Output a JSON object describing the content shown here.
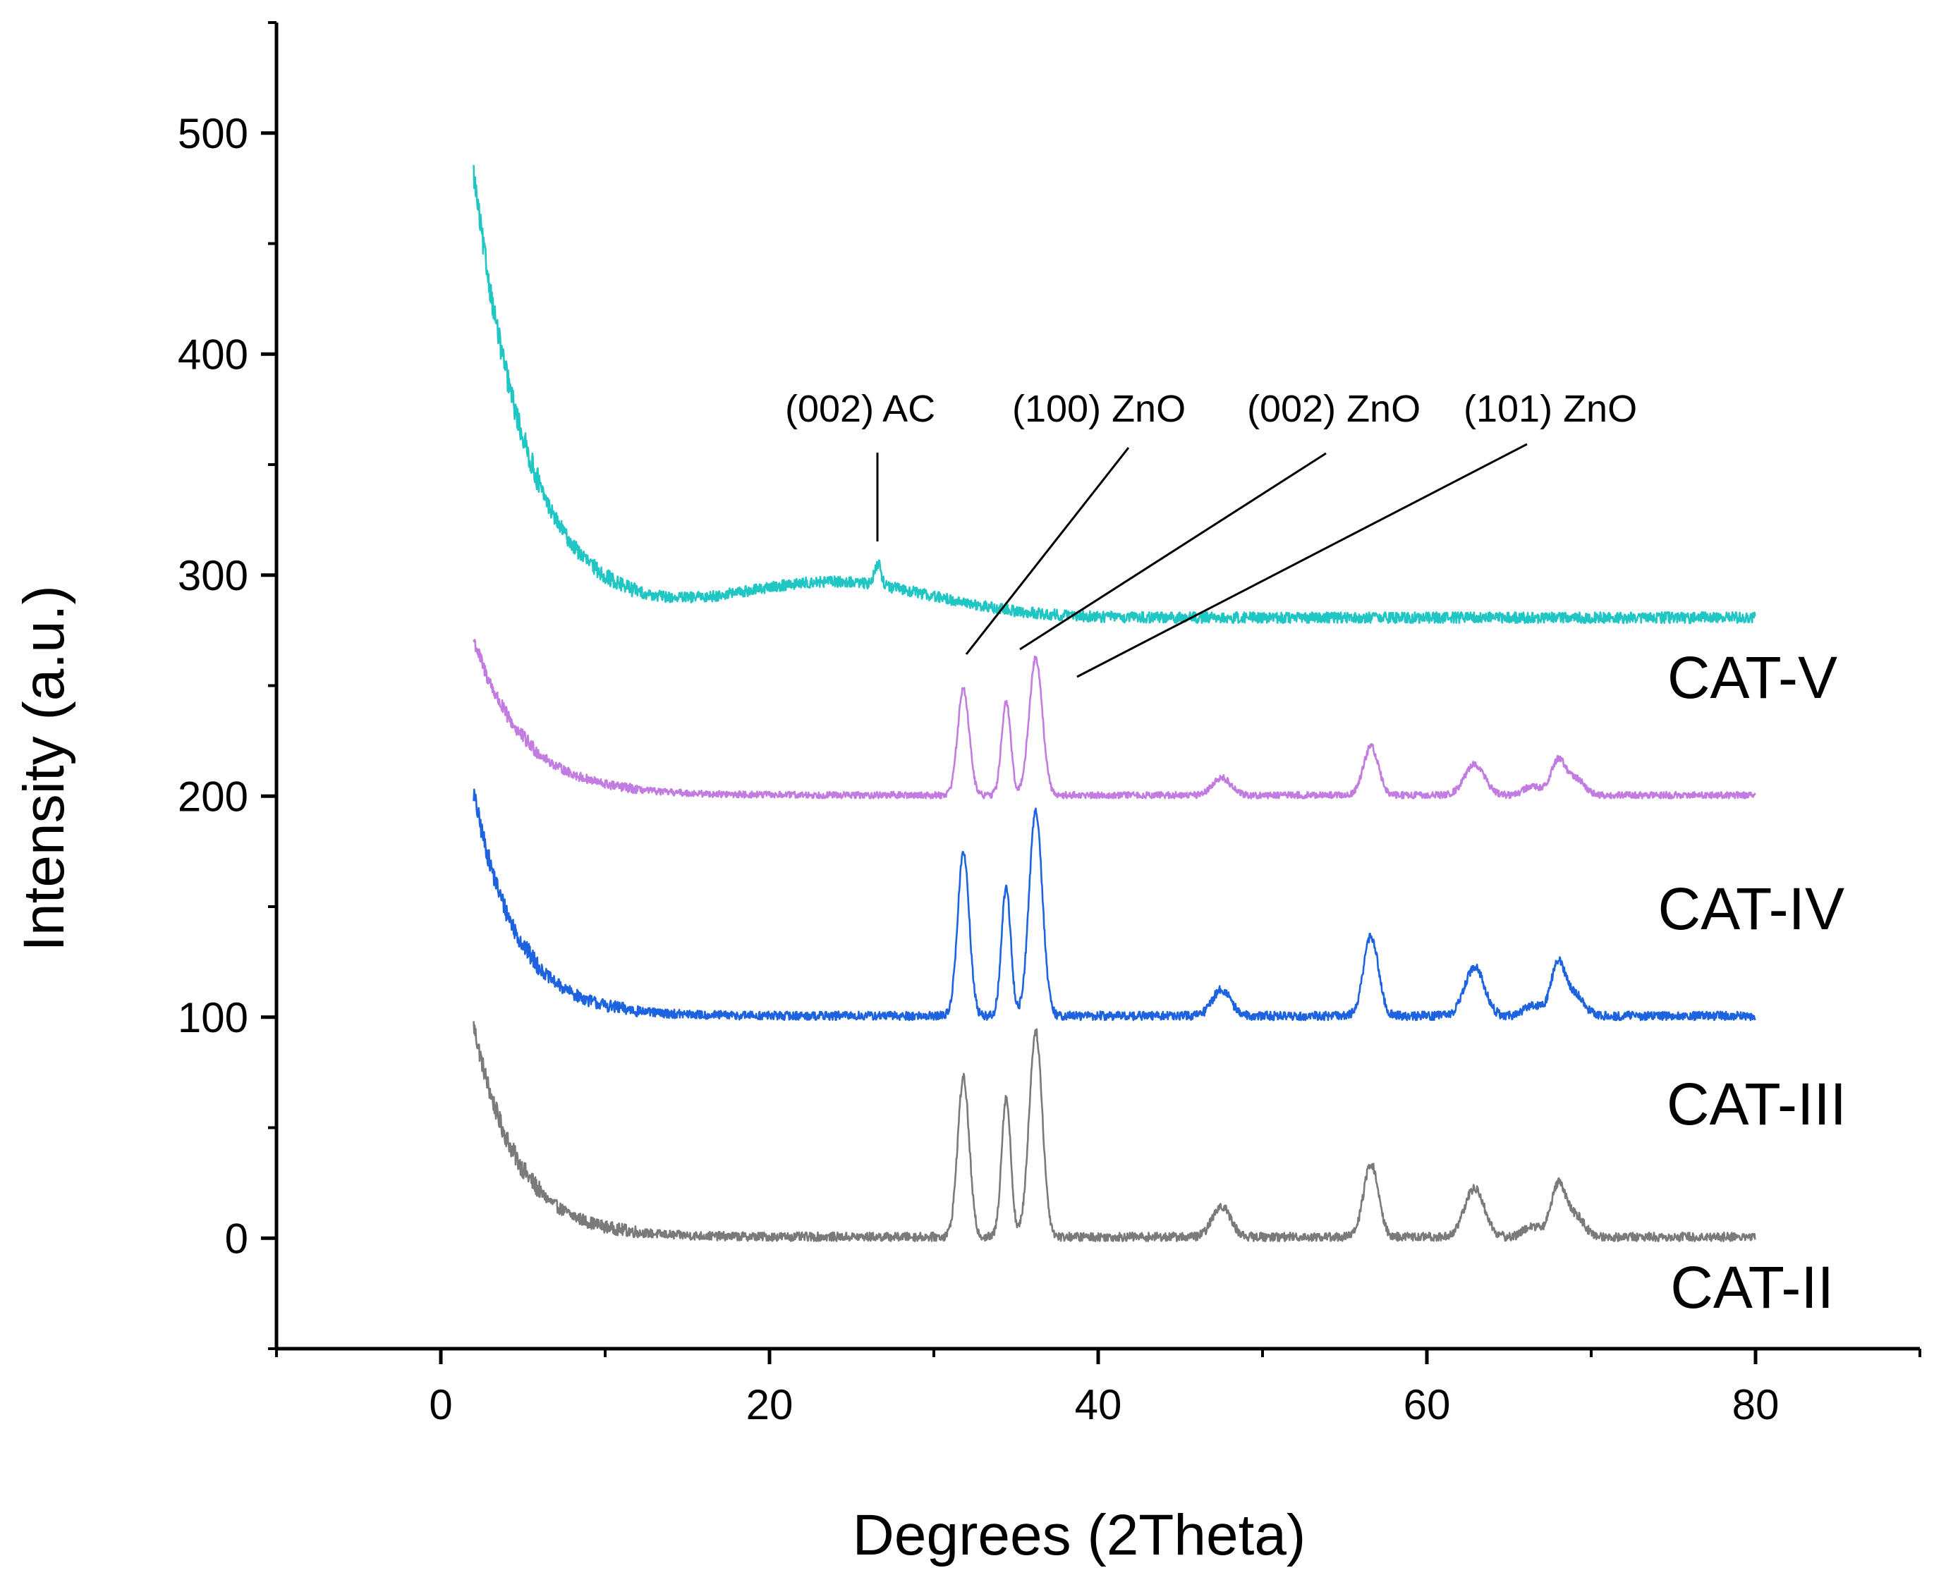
{
  "chart_data": {
    "type": "line",
    "title": "",
    "xlabel": "Degrees (2Theta)",
    "ylabel": "Intensity (a.u.)",
    "xlim": [
      -10,
      90
    ],
    "ylim": [
      -50,
      550
    ],
    "xticks": [
      0,
      20,
      40,
      60,
      80
    ],
    "yticks": [
      0,
      100,
      200,
      300,
      400,
      500
    ],
    "x_tick_labels": [
      "0",
      "20",
      "40",
      "60",
      "80"
    ],
    "y_tick_labels": [
      "0",
      "100",
      "200",
      "300",
      "400",
      "500"
    ],
    "grid": false,
    "series": [
      {
        "name": "CAT-II",
        "color": "#7a7a7a",
        "offset": 0,
        "profile": {
          "start": 2,
          "end": 80,
          "decay": {
            "amp": 95,
            "tau": 2.6
          },
          "noise": 4,
          "peaks": [
            [
              31.8,
              72,
              0.35
            ],
            [
              34.4,
              63,
              0.28
            ],
            [
              36.2,
              93,
              0.4
            ],
            [
              47.5,
              14,
              0.55
            ],
            [
              56.6,
              33,
              0.45
            ],
            [
              62.9,
              22,
              0.6
            ],
            [
              66.4,
              5,
              0.5
            ],
            [
              68.0,
              24,
              0.45
            ],
            [
              69.1,
              9,
              0.5
            ]
          ]
        }
      },
      {
        "name": "CAT-III",
        "color": "#1d63df",
        "offset": 100,
        "profile": {
          "start": 2,
          "end": 80,
          "decay": {
            "amp": 100,
            "tau": 2.6
          },
          "noise": 4,
          "peaks": [
            [
              31.8,
              74,
              0.35
            ],
            [
              34.4,
              58,
              0.28
            ],
            [
              36.2,
              93,
              0.4
            ],
            [
              47.5,
              12,
              0.55
            ],
            [
              56.6,
              36,
              0.45
            ],
            [
              62.9,
              22,
              0.6
            ],
            [
              66.4,
              5,
              0.5
            ],
            [
              68.0,
              24,
              0.45
            ],
            [
              69.1,
              9,
              0.5
            ]
          ]
        }
      },
      {
        "name": "CAT-IV",
        "color": "#c27be0",
        "offset": 200,
        "profile": {
          "start": 2,
          "end": 80,
          "decay": {
            "amp": 70,
            "tau": 3.0
          },
          "noise": 3,
          "peaks": [
            [
              31.8,
              48,
              0.35
            ],
            [
              34.4,
              42,
              0.28
            ],
            [
              36.2,
              62,
              0.4
            ],
            [
              47.5,
              8,
              0.55
            ],
            [
              56.6,
              22,
              0.45
            ],
            [
              62.9,
              14,
              0.6
            ],
            [
              66.4,
              4,
              0.5
            ],
            [
              68.0,
              16,
              0.45
            ],
            [
              69.1,
              7,
              0.5
            ]
          ]
        }
      },
      {
        "name": "CAT-V",
        "color": "#1fc6c4",
        "offset": 280,
        "profile": {
          "start": 2,
          "end": 80,
          "decay": {
            "amp": 200,
            "tau": 3.3
          },
          "noise": 5,
          "broad": [
            24.0,
            16,
            6.0
          ],
          "peaks": [
            [
              26.6,
              10,
              0.2
            ]
          ]
        }
      }
    ],
    "series_labels": [
      {
        "text": "CAT-V"
      },
      {
        "text": "CAT-IV"
      },
      {
        "text": "CAT-III"
      },
      {
        "text": "CAT-II"
      }
    ],
    "annotations": [
      {
        "text": "(002) AC"
      },
      {
        "text": "(100) ZnO"
      },
      {
        "text": "(002) ZnO"
      },
      {
        "text": "(101) ZnO"
      }
    ]
  }
}
